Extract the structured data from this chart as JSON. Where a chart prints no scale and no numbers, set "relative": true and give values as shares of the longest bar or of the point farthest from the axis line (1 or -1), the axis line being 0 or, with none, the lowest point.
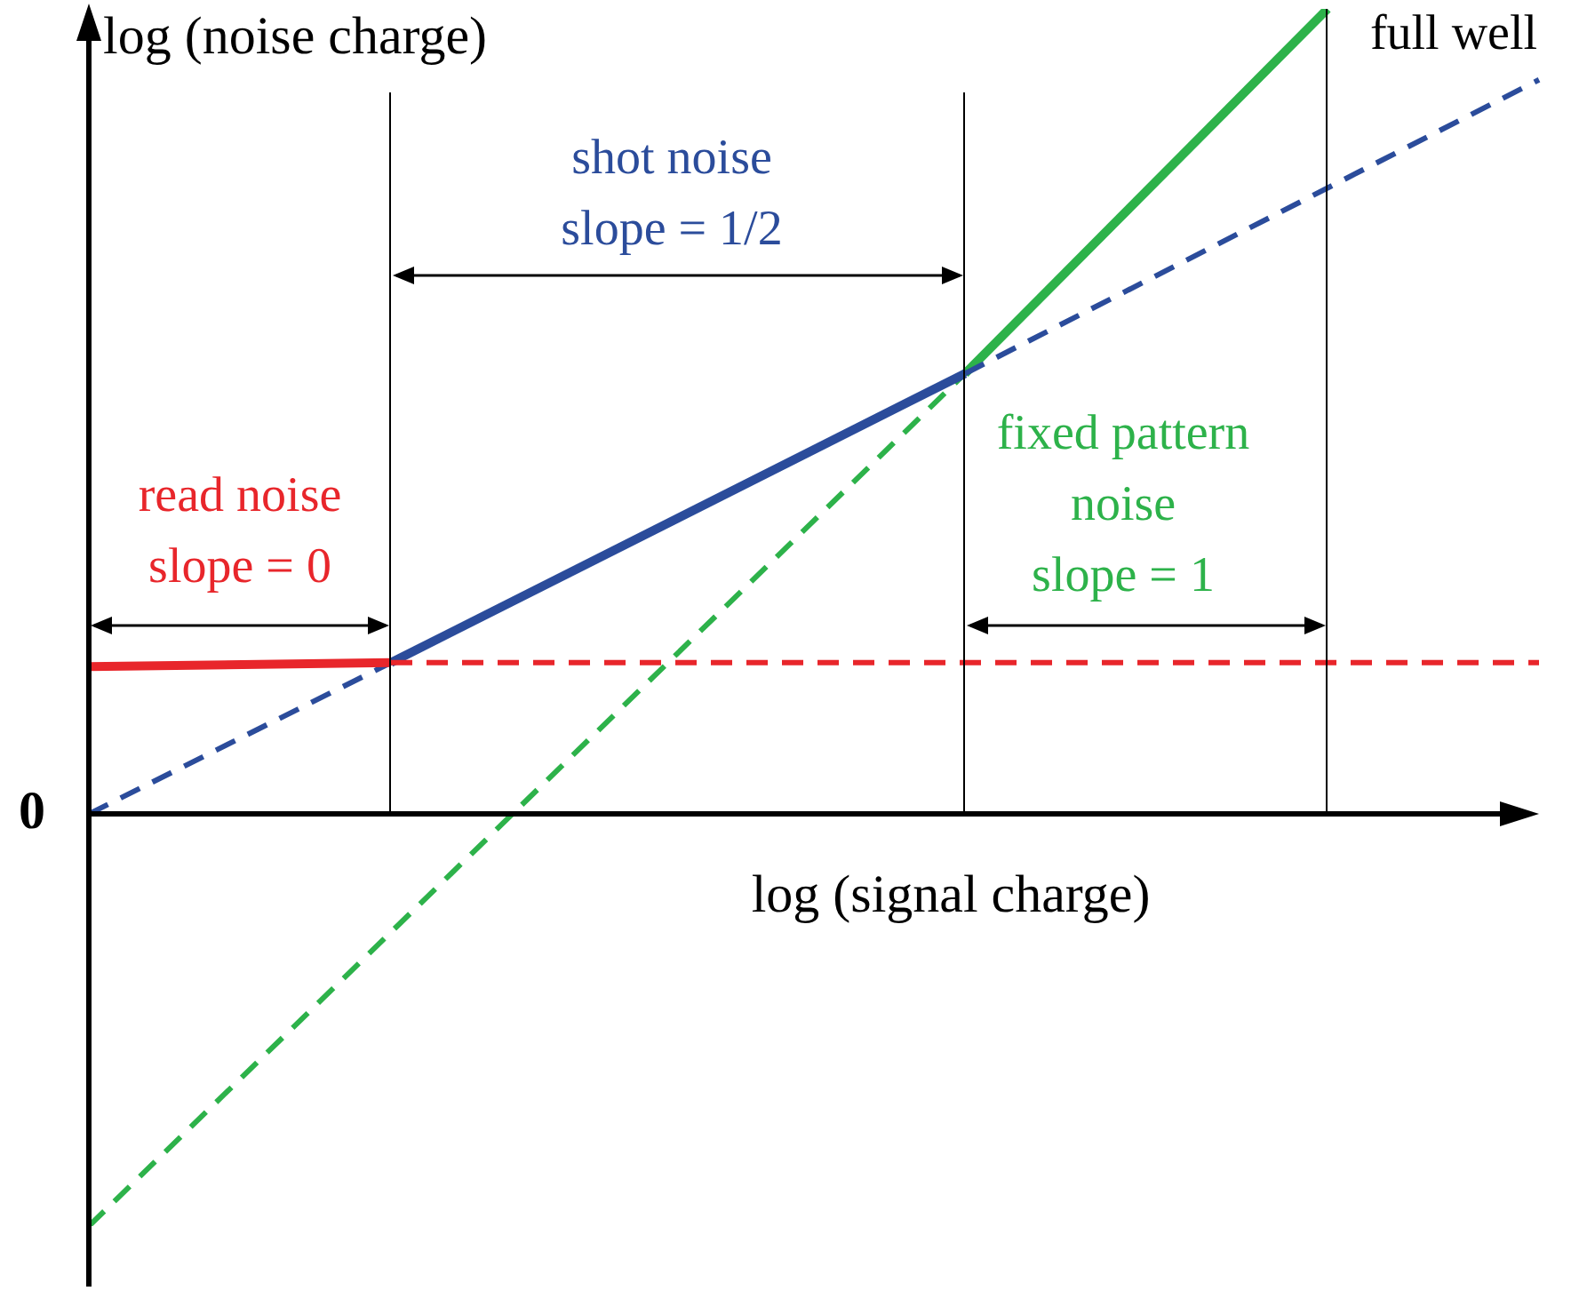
{
  "chart_data": {
    "type": "line",
    "relative": true,
    "marker": "none",
    "ylabel": "log (noise charge)",
    "xlabel": "log (signal charge)",
    "categories": [
      null,
      null,
      null,
      null,
      null,
      null,
      null,
      null,
      null,
      null,
      null,
      null,
      null,
      null,
      null,
      null,
      null,
      null,
      null,
      null,
      null,
      null,
      null,
      null,
      null,
      null,
      null,
      null,
      null,
      null,
      null,
      null,
      null,
      null,
      null,
      null,
      null,
      null,
      null,
      null,
      null,
      null,
      null,
      null,
      null,
      null,
      null,
      null,
      null
    ],
    "series": [
      {
        "color": "#e8262b",
        "line_style": "solid",
        "values": [
          0.183,
          null,
          null,
          null,
          null,
          null,
          null,
          null,
          null,
          null,
          0.188,
          null,
          null,
          null,
          null,
          null,
          null,
          null,
          null,
          null,
          null,
          null,
          null,
          null,
          null,
          null,
          null,
          null,
          null,
          null,
          null,
          null,
          null,
          null,
          null,
          null,
          null,
          null,
          null,
          null,
          null,
          null,
          null,
          null,
          null,
          null,
          null,
          null,
          null
        ]
      },
      {
        "color": "#e8262b",
        "line_style": "dashed",
        "values": [
          null,
          null,
          null,
          null,
          null,
          null,
          null,
          null,
          null,
          null,
          0.188,
          null,
          null,
          null,
          null,
          null,
          null,
          null,
          null,
          null,
          null,
          null,
          null,
          null,
          null,
          null,
          null,
          null,
          null,
          null,
          null,
          null,
          null,
          null,
          null,
          null,
          null,
          null,
          null,
          null,
          null,
          null,
          null,
          null,
          null,
          null,
          null,
          null,
          0.188
        ]
      },
      {
        "color": "#2b4c9b",
        "line_style": "solid",
        "values": [
          null,
          null,
          null,
          null,
          null,
          null,
          null,
          null,
          null,
          null,
          0.188,
          null,
          null,
          null,
          null,
          null,
          null,
          null,
          null,
          null,
          null,
          null,
          null,
          null,
          null,
          null,
          null,
          null,
          null,
          0.547,
          null,
          null,
          null,
          null,
          null,
          null,
          null,
          null,
          null,
          null,
          null,
          null,
          null,
          null,
          null,
          null,
          null,
          null,
          null
        ]
      },
      {
        "color": "#2b4c9b",
        "line_style": "dashed",
        "values": [
          0,
          null,
          null,
          null,
          null,
          null,
          null,
          null,
          null,
          null,
          0.188,
          null,
          null,
          null,
          null,
          null,
          null,
          null,
          null,
          null,
          null,
          null,
          null,
          null,
          null,
          null,
          null,
          null,
          null,
          null,
          null,
          null,
          null,
          null,
          null,
          null,
          null,
          null,
          null,
          null,
          null,
          null,
          null,
          null,
          null,
          null,
          null,
          null,
          null
        ]
      },
      {
        "color": "#2b4c9b",
        "line_style": "dashed",
        "values": [
          null,
          null,
          null,
          null,
          null,
          null,
          null,
          null,
          null,
          null,
          null,
          null,
          null,
          null,
          null,
          null,
          null,
          null,
          null,
          null,
          null,
          null,
          null,
          null,
          null,
          null,
          null,
          null,
          null,
          0.547,
          null,
          null,
          null,
          null,
          null,
          null,
          null,
          null,
          null,
          null,
          null,
          null,
          null,
          null,
          null,
          null,
          null,
          null,
          0.912
        ]
      },
      {
        "color": "#2db24a",
        "line_style": "dashed",
        "values": [
          -0.512,
          null,
          null,
          null,
          null,
          null,
          null,
          null,
          null,
          null,
          null,
          null,
          null,
          null,
          null,
          null,
          null,
          null,
          null,
          null,
          null,
          null,
          null,
          null,
          null,
          null,
          null,
          null,
          null,
          0.547,
          null,
          null,
          null,
          null,
          null,
          null,
          null,
          null,
          null,
          null,
          null,
          null,
          null,
          null,
          null,
          null,
          null,
          null,
          null
        ]
      },
      {
        "color": "#2db24a",
        "line_style": "solid",
        "values": [
          null,
          null,
          null,
          null,
          null,
          null,
          null,
          null,
          null,
          null,
          null,
          null,
          null,
          null,
          null,
          null,
          null,
          null,
          null,
          null,
          null,
          null,
          null,
          null,
          null,
          null,
          null,
          null,
          null,
          0.547,
          null,
          null,
          null,
          null,
          null,
          null,
          null,
          null,
          null,
          null,
          null,
          1,
          null,
          null,
          null,
          null,
          null,
          null,
          null
        ]
      }
    ],
    "annotations": [
      "read noise",
      "slope = 0",
      "shot noise",
      "slope = 1/2",
      "fixed pattern",
      "noise",
      "slope = 1",
      "full well",
      "0"
    ]
  }
}
